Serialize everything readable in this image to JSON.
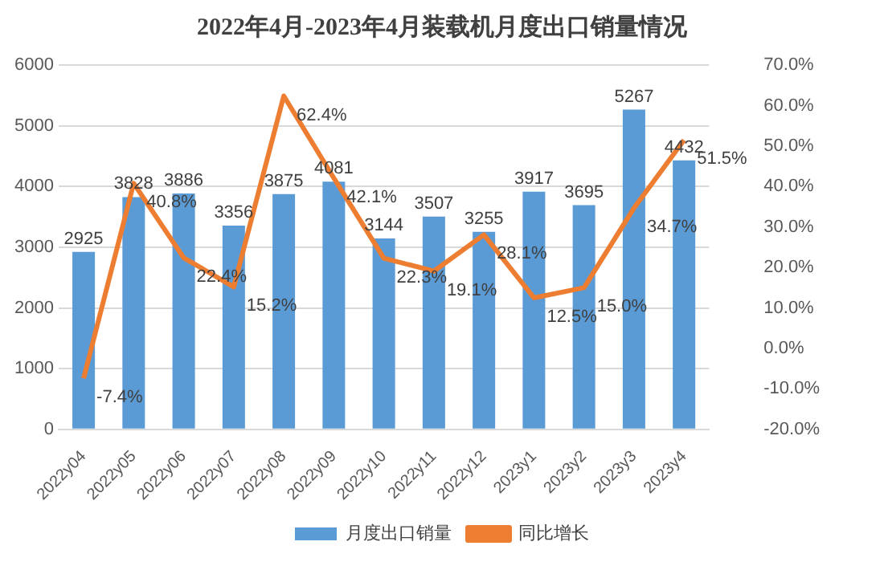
{
  "chart_data": {
    "type": "bar",
    "title": "2022年4月-2023年4月装载机月度出口销量情况",
    "categories": [
      "2022y04",
      "2022y05",
      "2022y06",
      "2022y07",
      "2022y08",
      "2022y09",
      "2022y10",
      "2022y11",
      "2022y12",
      "2023y1",
      "2023y2",
      "2023y3",
      "2023y4"
    ],
    "series": [
      {
        "name": "月度出口销量",
        "color": "#5b9bd5",
        "values": [
          2925,
          3828,
          3886,
          3356,
          3875,
          4081,
          3144,
          3507,
          3255,
          3917,
          3695,
          5267,
          4432
        ],
        "value_labels": [
          "2925",
          "3828",
          "3886",
          "3356",
          "3875",
          "4081",
          "3144",
          "3507",
          "3255",
          "3917",
          "3695",
          "5267",
          "4432"
        ]
      },
      {
        "name": "同比增长",
        "type": "line",
        "axis": "y2",
        "color": "#ed7d31",
        "values": [
          -7.4,
          40.8,
          22.4,
          15.2,
          62.4,
          42.1,
          22.3,
          19.1,
          28.1,
          12.5,
          15.0,
          34.7,
          51.5
        ],
        "value_labels": [
          "-7.4%",
          "40.8%",
          "22.4%",
          "15.2%",
          "62.4%",
          "42.1%",
          "22.3%",
          "19.1%",
          "28.1%",
          "12.5%",
          "15.0%",
          "34.7%",
          "51.5%"
        ]
      }
    ],
    "ylim": [
      0,
      6000
    ],
    "yticks": [
      0,
      1000,
      2000,
      3000,
      4000,
      5000,
      6000
    ],
    "y2lim": [
      -20,
      70
    ],
    "y2ticks": [
      {
        "value": -20,
        "label": "-20.0%"
      },
      {
        "value": -10,
        "label": "-10.0%"
      },
      {
        "value": 0,
        "label": "0.0%"
      },
      {
        "value": 10,
        "label": "10.0%"
      },
      {
        "value": 20,
        "label": "20.0%"
      },
      {
        "value": 30,
        "label": "30.0%"
      },
      {
        "value": 40,
        "label": "40.0%"
      },
      {
        "value": 50,
        "label": "50.0%"
      },
      {
        "value": 60,
        "label": "60.0%"
      },
      {
        "value": 70,
        "label": "70.0%"
      }
    ],
    "grid": "y",
    "legend": "bottom"
  }
}
